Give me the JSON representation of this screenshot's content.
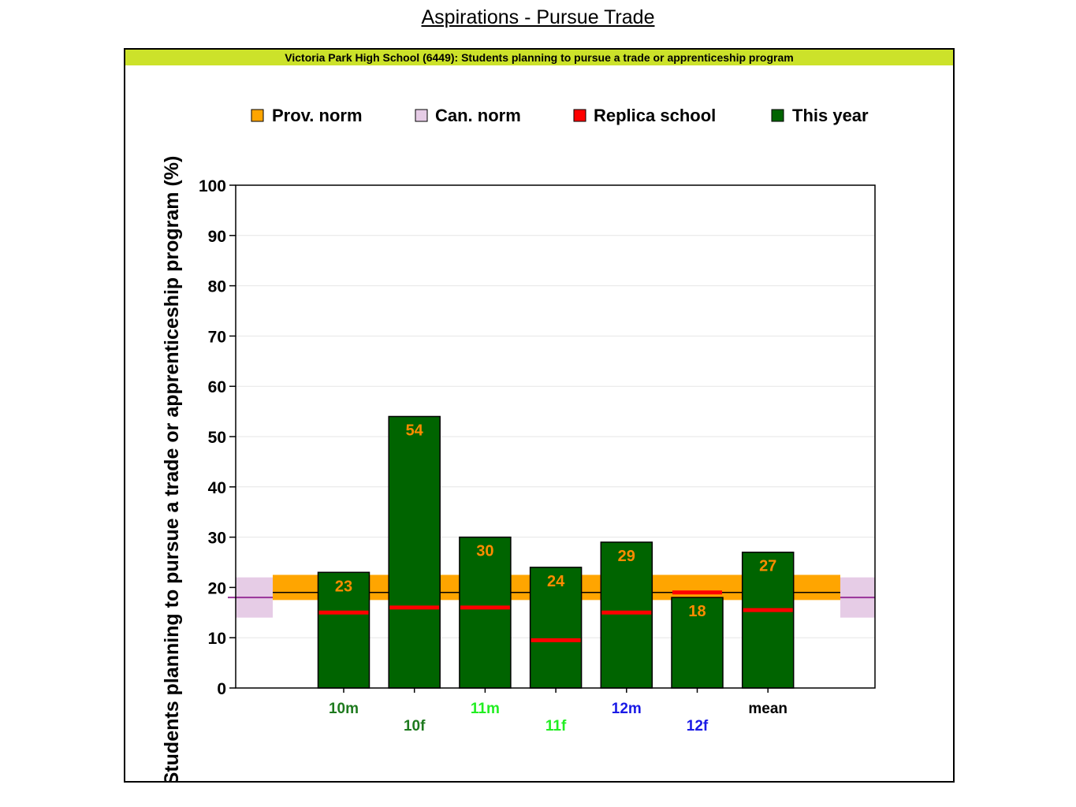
{
  "page": {
    "title": "Aspirations - Pursue Trade"
  },
  "colors": {
    "header_band": "#cce22a",
    "prov_norm": "#ffa500",
    "can_norm": "#e6cce6",
    "replica": "#ff0000",
    "this_year": "#006400",
    "value_label": "#ff8c00",
    "line_marker": "#993399"
  },
  "chart_data": {
    "type": "bar",
    "title": "Victoria Park High School (6449): Students planning to pursue a trade or apprenticeship program",
    "ylabel": "Students planning to pursue a trade or apprenticeship program (%)",
    "xlabel": "",
    "ylim": [
      0,
      100
    ],
    "yticks": [
      "0",
      "10",
      "20",
      "30",
      "40",
      "50",
      "60",
      "70",
      "80",
      "90",
      "100"
    ],
    "grid": true,
    "legend": {
      "position": "top",
      "entries": [
        "Prov. norm",
        "Can. norm",
        "Replica school",
        "This year"
      ]
    },
    "categories": [
      "10m",
      "10f",
      "11m",
      "11f",
      "12m",
      "12f",
      "mean"
    ],
    "category_colors": [
      "#1e7a1e",
      "#1e7a1e",
      "#22ee22",
      "#22ee22",
      "#1a1ae6",
      "#1a1ae6",
      "#000000"
    ],
    "series": [
      {
        "name": "This year",
        "values": [
          23,
          54,
          30,
          24,
          29,
          18,
          27
        ]
      },
      {
        "name": "Replica school",
        "values": [
          15,
          16,
          16,
          9.5,
          15,
          19,
          15.5
        ]
      }
    ],
    "data_labels": [
      "23",
      "54",
      "30",
      "24",
      "29",
      "18",
      "27"
    ],
    "prov_norm": {
      "value": 19,
      "low": 17.5,
      "high": 22.5
    },
    "can_norm": {
      "value": 18,
      "low": 14,
      "high": 22
    }
  }
}
